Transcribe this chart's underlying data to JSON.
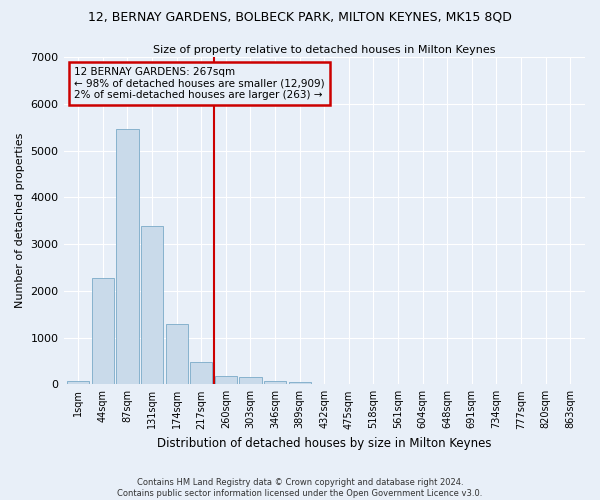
{
  "title": "12, BERNAY GARDENS, BOLBECK PARK, MILTON KEYNES, MK15 8QD",
  "subtitle": "Size of property relative to detached houses in Milton Keynes",
  "xlabel": "Distribution of detached houses by size in Milton Keynes",
  "ylabel": "Number of detached properties",
  "bar_color": "#c9daea",
  "bar_edge_color": "#7aaac8",
  "bg_color": "#e8eff8",
  "grid_color": "#ffffff",
  "categories": [
    "1sqm",
    "44sqm",
    "87sqm",
    "131sqm",
    "174sqm",
    "217sqm",
    "260sqm",
    "303sqm",
    "346sqm",
    "389sqm",
    "432sqm",
    "475sqm",
    "518sqm",
    "561sqm",
    "604sqm",
    "648sqm",
    "691sqm",
    "734sqm",
    "777sqm",
    "820sqm",
    "863sqm"
  ],
  "values": [
    70,
    2270,
    5460,
    3380,
    1300,
    480,
    175,
    155,
    80,
    55,
    0,
    0,
    0,
    0,
    0,
    0,
    0,
    0,
    0,
    0,
    0
  ],
  "property_line_x": 5.5,
  "annotation_line1": "12 BERNAY GARDENS: 267sqm",
  "annotation_line2": "← 98% of detached houses are smaller (12,909)",
  "annotation_line3": "2% of semi-detached houses are larger (263) →",
  "annotation_box_color": "#cc0000",
  "ylim": [
    0,
    7000
  ],
  "footnote1": "Contains HM Land Registry data © Crown copyright and database right 2024.",
  "footnote2": "Contains public sector information licensed under the Open Government Licence v3.0."
}
